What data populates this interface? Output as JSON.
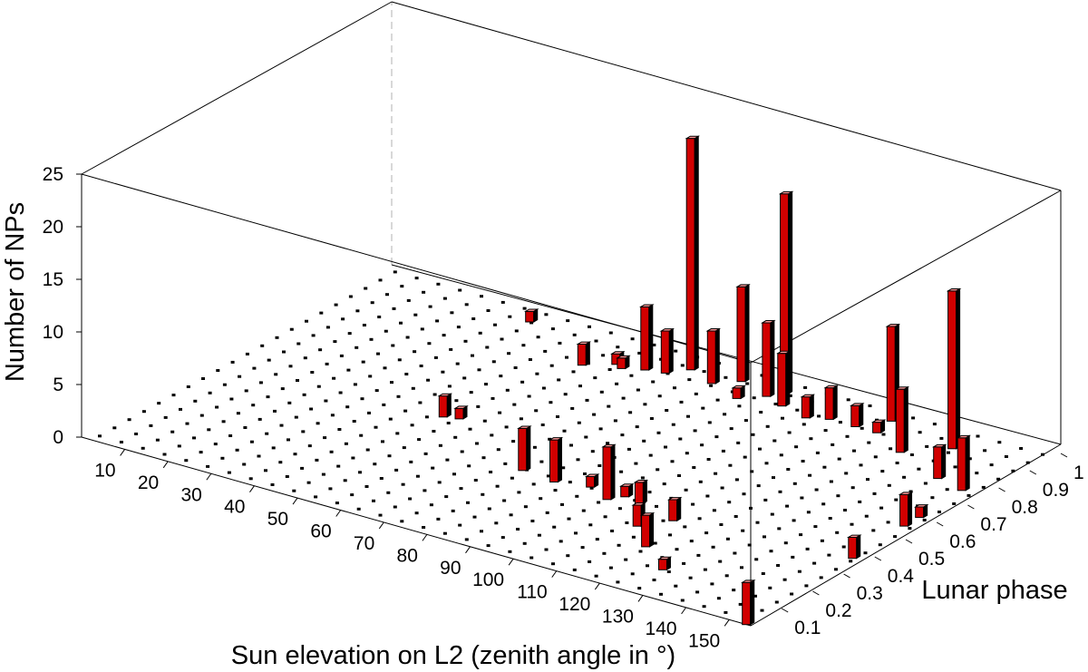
{
  "chart_data": {
    "type": "bar3d",
    "xlabel": "Sun elevation on L2 (zenith angle in °)",
    "ylabel": "Lunar phase",
    "zlabel": "Number of NPs",
    "x_ticks": [
      "10",
      "20",
      "30",
      "40",
      "50",
      "60",
      "70",
      "80",
      "90",
      "100",
      "110",
      "120",
      "130",
      "140",
      "150"
    ],
    "y_ticks": [
      "0.1",
      "0.2",
      "0.3",
      "0.4",
      "0.5",
      "0.6",
      "0.7",
      "0.8",
      "0.9",
      "1"
    ],
    "z_ticks": [
      "0",
      "5",
      "10",
      "15",
      "20",
      "25"
    ],
    "xlim": [
      0,
      155
    ],
    "ylim": [
      0,
      1
    ],
    "zlim": [
      0,
      25
    ],
    "bars": [
      {
        "x": 37,
        "y": 0.93,
        "z": 1
      },
      {
        "x": 57,
        "y": 0.82,
        "z": 2
      },
      {
        "x": 62,
        "y": 0.86,
        "z": 1
      },
      {
        "x": 64,
        "y": 0.85,
        "z": 1
      },
      {
        "x": 68,
        "y": 0.87,
        "z": 6
      },
      {
        "x": 72,
        "y": 0.88,
        "z": 4
      },
      {
        "x": 75,
        "y": 0.92,
        "z": 22
      },
      {
        "x": 82,
        "y": 0.89,
        "z": 5
      },
      {
        "x": 86,
        "y": 0.93,
        "z": 9
      },
      {
        "x": 90,
        "y": 0.86,
        "z": 1
      },
      {
        "x": 94,
        "y": 0.9,
        "z": 7
      },
      {
        "x": 96,
        "y": 0.93,
        "z": 19
      },
      {
        "x": 99,
        "y": 0.88,
        "z": 5
      },
      {
        "x": 106,
        "y": 0.86,
        "z": 2
      },
      {
        "x": 110,
        "y": 0.88,
        "z": 3
      },
      {
        "x": 116,
        "y": 0.88,
        "z": 2
      },
      {
        "x": 121,
        "y": 0.88,
        "z": 1
      },
      {
        "x": 120,
        "y": 0.94,
        "z": 9
      },
      {
        "x": 130,
        "y": 0.83,
        "z": 6
      },
      {
        "x": 137,
        "y": 0.9,
        "z": 15
      },
      {
        "x": 143,
        "y": 0.77,
        "z": 3
      },
      {
        "x": 150,
        "y": 0.75,
        "z": 5
      },
      {
        "x": 151,
        "y": 0.6,
        "z": 1
      },
      {
        "x": 151,
        "y": 0.55,
        "z": 3
      },
      {
        "x": 152,
        "y": 0.37,
        "z": 2
      },
      {
        "x": 50,
        "y": 0.47,
        "z": 2
      },
      {
        "x": 53,
        "y": 0.48,
        "z": 1
      },
      {
        "x": 77,
        "y": 0.35,
        "z": 4
      },
      {
        "x": 85,
        "y": 0.34,
        "z": 4
      },
      {
        "x": 92,
        "y": 0.36,
        "z": 1
      },
      {
        "x": 98,
        "y": 0.33,
        "z": 5
      },
      {
        "x": 100,
        "y": 0.36,
        "z": 1
      },
      {
        "x": 104,
        "y": 0.35,
        "z": 2
      },
      {
        "x": 110,
        "y": 0.26,
        "z": 2
      },
      {
        "x": 114,
        "y": 0.32,
        "z": 2
      },
      {
        "x": 117,
        "y": 0.19,
        "z": 3
      },
      {
        "x": 126,
        "y": 0.12,
        "z": 1
      },
      {
        "x": 154,
        "y": 0.0,
        "z": 4
      }
    ]
  }
}
